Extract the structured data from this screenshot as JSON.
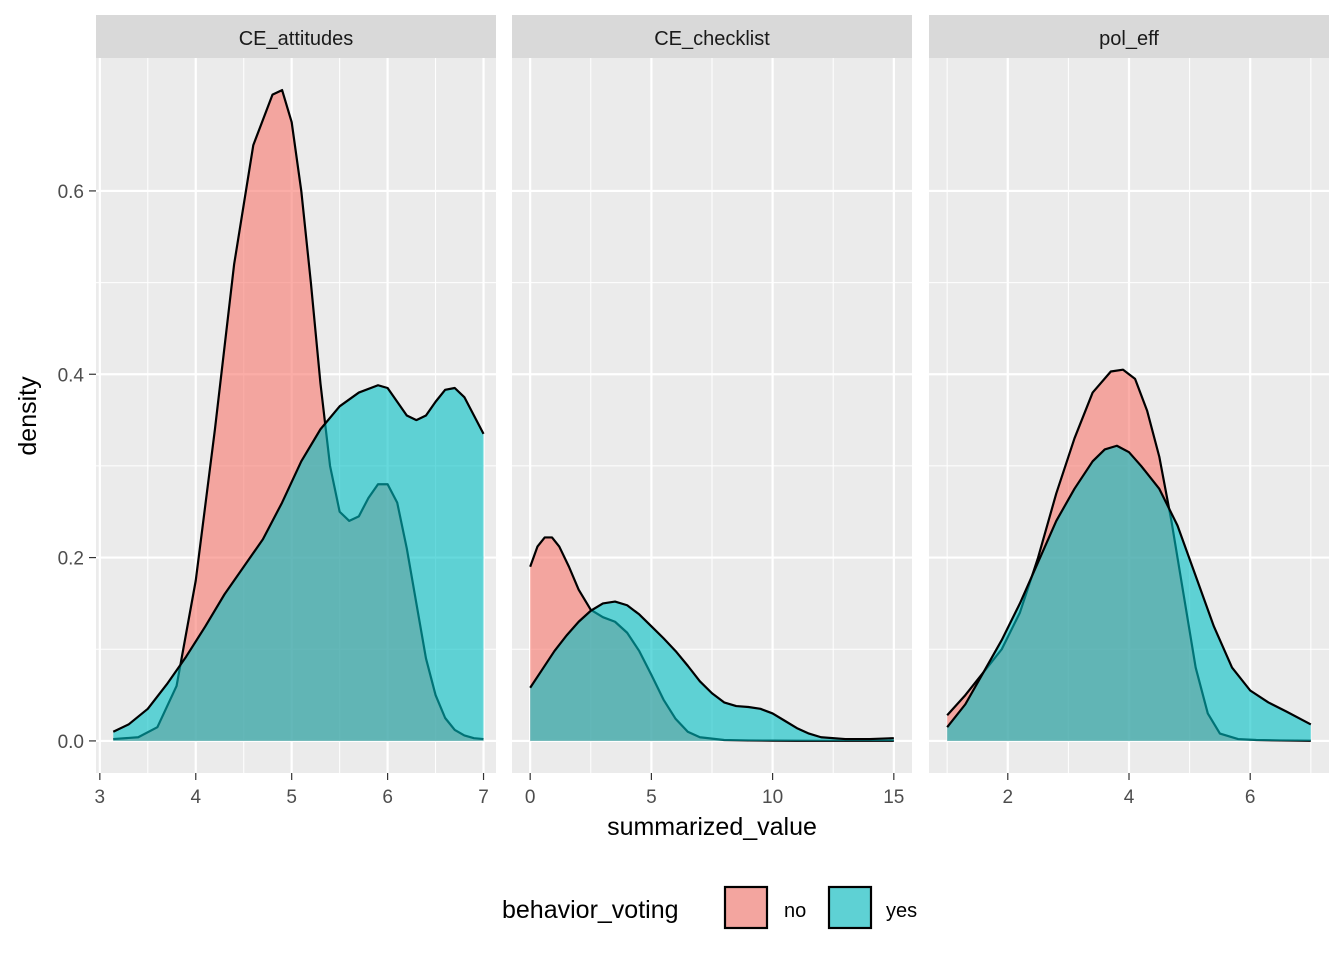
{
  "chart_data": {
    "type": "area",
    "subtype": "density",
    "facet_by": "variable",
    "xlabel": "summarized_value",
    "ylabel": "density",
    "y_ticks": [
      0.0,
      0.2,
      0.4,
      0.6
    ],
    "y_tick_labels": [
      "0.0",
      "0.2",
      "0.4",
      "0.6"
    ],
    "ylim": [
      -0.035,
      0.745
    ],
    "grid": true,
    "legend": {
      "title": "behavior_voting",
      "position": "bottom",
      "entries": [
        {
          "label": "no",
          "color": "#F8766D"
        },
        {
          "label": "yes",
          "color": "#00BFC4"
        }
      ]
    },
    "fill_opacity": 0.6,
    "panels": [
      {
        "strip": "CE_attitudes",
        "xlim": [
          2.96,
          7.13
        ],
        "x_ticks": [
          3,
          4,
          5,
          6,
          7
        ],
        "x_tick_labels": [
          "3",
          "4",
          "5",
          "6",
          "7"
        ],
        "series": [
          {
            "name": "no",
            "x": [
              3.14,
              3.4,
              3.6,
              3.8,
              4.0,
              4.2,
              4.4,
              4.6,
              4.8,
              4.9,
              5.0,
              5.1,
              5.2,
              5.3,
              5.4,
              5.5,
              5.6,
              5.7,
              5.8,
              5.9,
              6.0,
              6.1,
              6.2,
              6.3,
              6.4,
              6.5,
              6.6,
              6.7,
              6.8,
              6.9,
              7.0
            ],
            "y": [
              0.002,
              0.004,
              0.015,
              0.06,
              0.175,
              0.34,
              0.52,
              0.65,
              0.705,
              0.71,
              0.675,
              0.6,
              0.5,
              0.39,
              0.3,
              0.25,
              0.24,
              0.245,
              0.265,
              0.28,
              0.28,
              0.26,
              0.21,
              0.15,
              0.09,
              0.05,
              0.025,
              0.012,
              0.006,
              0.003,
              0.002
            ]
          },
          {
            "name": "yes",
            "x": [
              3.14,
              3.3,
              3.5,
              3.7,
              3.9,
              4.1,
              4.3,
              4.5,
              4.7,
              4.9,
              5.1,
              5.3,
              5.5,
              5.7,
              5.9,
              6.0,
              6.1,
              6.2,
              6.3,
              6.4,
              6.5,
              6.6,
              6.7,
              6.8,
              6.9,
              7.0
            ],
            "y": [
              0.01,
              0.018,
              0.035,
              0.062,
              0.092,
              0.125,
              0.16,
              0.19,
              0.22,
              0.26,
              0.305,
              0.34,
              0.365,
              0.38,
              0.388,
              0.385,
              0.37,
              0.355,
              0.35,
              0.355,
              0.37,
              0.383,
              0.385,
              0.375,
              0.355,
              0.335
            ]
          }
        ]
      },
      {
        "strip": "CE_checklist",
        "xlim": [
          -0.75,
          15.75
        ],
        "x_ticks": [
          0,
          5,
          10,
          15
        ],
        "x_tick_labels": [
          "0",
          "5",
          "10",
          "15"
        ],
        "series": [
          {
            "name": "no",
            "x": [
              0,
              0.3,
              0.6,
              0.9,
              1.2,
              1.6,
              2.0,
              2.5,
              3.0,
              3.5,
              4.0,
              4.5,
              5.0,
              5.5,
              6.0,
              6.5,
              7.0,
              8.0,
              9.0,
              10,
              11,
              12,
              13,
              14,
              15
            ],
            "y": [
              0.19,
              0.212,
              0.222,
              0.222,
              0.212,
              0.19,
              0.165,
              0.143,
              0.135,
              0.13,
              0.118,
              0.098,
              0.072,
              0.045,
              0.024,
              0.01,
              0.004,
              0.001,
              0.0005,
              0.0003,
              0.0002,
              0.0001,
              0.0001,
              0.0001,
              0.0001
            ]
          },
          {
            "name": "yes",
            "x": [
              0,
              0.5,
              1.0,
              1.5,
              2.0,
              2.5,
              3.0,
              3.5,
              4.0,
              4.5,
              5.0,
              5.5,
              6.0,
              6.5,
              7.0,
              7.5,
              8.0,
              8.5,
              9.0,
              9.5,
              10,
              10.5,
              11,
              11.5,
              12,
              13,
              14,
              15
            ],
            "y": [
              0.058,
              0.078,
              0.098,
              0.115,
              0.13,
              0.142,
              0.15,
              0.152,
              0.148,
              0.138,
              0.125,
              0.112,
              0.098,
              0.082,
              0.065,
              0.052,
              0.042,
              0.038,
              0.037,
              0.035,
              0.03,
              0.022,
              0.014,
              0.008,
              0.004,
              0.002,
              0.002,
              0.003
            ]
          }
        ]
      },
      {
        "strip": "pol_eff",
        "xlim": [
          0.7,
          7.3
        ],
        "x_ticks": [
          2,
          4,
          6
        ],
        "x_tick_labels": [
          "2",
          "4",
          "6"
        ],
        "series": [
          {
            "name": "no",
            "x": [
              1.0,
              1.3,
              1.6,
              1.9,
              2.2,
              2.5,
              2.8,
              3.1,
              3.4,
              3.7,
              3.9,
              4.1,
              4.3,
              4.5,
              4.7,
              4.9,
              5.1,
              5.3,
              5.5,
              5.8,
              6.1,
              6.5,
              7.0
            ],
            "y": [
              0.028,
              0.05,
              0.075,
              0.1,
              0.14,
              0.2,
              0.27,
              0.33,
              0.38,
              0.403,
              0.405,
              0.395,
              0.36,
              0.31,
              0.24,
              0.16,
              0.08,
              0.03,
              0.008,
              0.002,
              0.001,
              0.0005,
              0.0002
            ]
          },
          {
            "name": "yes",
            "x": [
              1.0,
              1.3,
              1.6,
              1.9,
              2.2,
              2.5,
              2.8,
              3.1,
              3.4,
              3.6,
              3.8,
              4.0,
              4.2,
              4.5,
              4.8,
              5.1,
              5.4,
              5.7,
              6.0,
              6.3,
              6.6,
              7.0
            ],
            "y": [
              0.015,
              0.04,
              0.075,
              0.11,
              0.15,
              0.195,
              0.24,
              0.275,
              0.305,
              0.318,
              0.322,
              0.315,
              0.3,
              0.275,
              0.235,
              0.18,
              0.125,
              0.08,
              0.055,
              0.042,
              0.032,
              0.018
            ]
          }
        ]
      }
    ]
  }
}
